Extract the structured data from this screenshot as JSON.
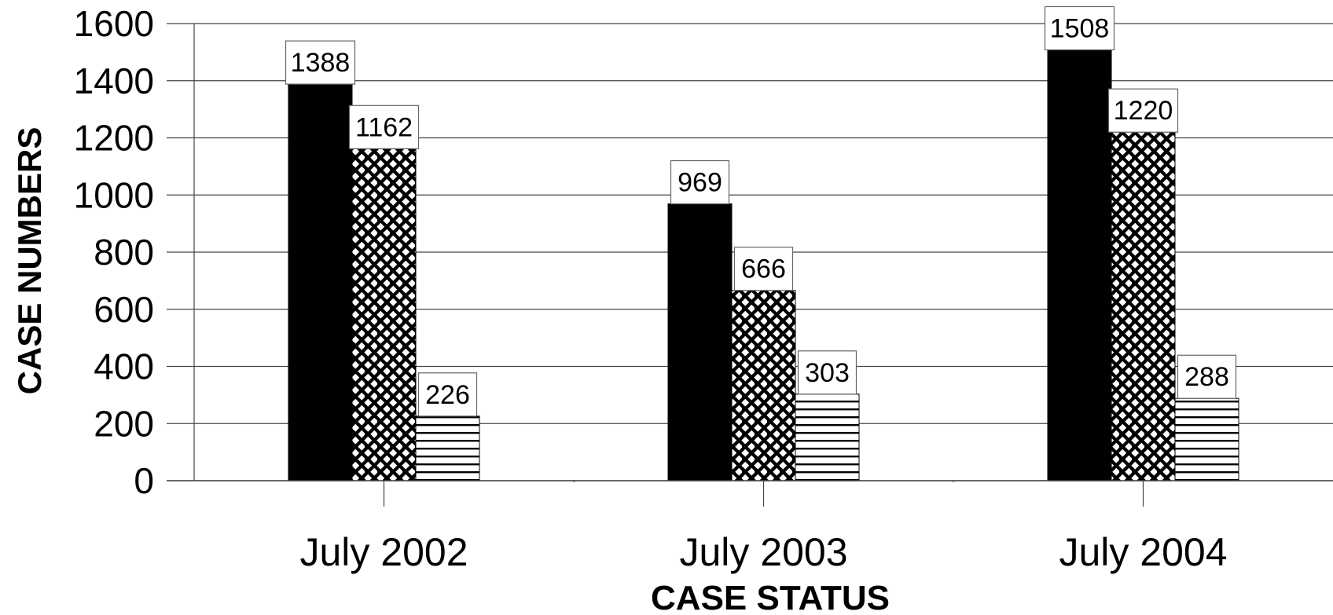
{
  "chart_data": {
    "type": "bar",
    "xlabel": "CASE STATUS",
    "ylabel": "CASE NUMBERS",
    "ylim": [
      0,
      1600
    ],
    "yticks": [
      0,
      200,
      400,
      600,
      800,
      1000,
      1200,
      1400,
      1600
    ],
    "grid": true,
    "categories": [
      "July 2002",
      "July 2003",
      "July 2004"
    ],
    "series": [
      {
        "values": [
          1388,
          969,
          1508
        ],
        "fill": "solid-black"
      },
      {
        "values": [
          1162,
          666,
          1220
        ],
        "fill": "crosshatch"
      },
      {
        "values": [
          226,
          303,
          288
        ],
        "fill": "horizontal-lines"
      }
    ],
    "data_labels": true
  }
}
